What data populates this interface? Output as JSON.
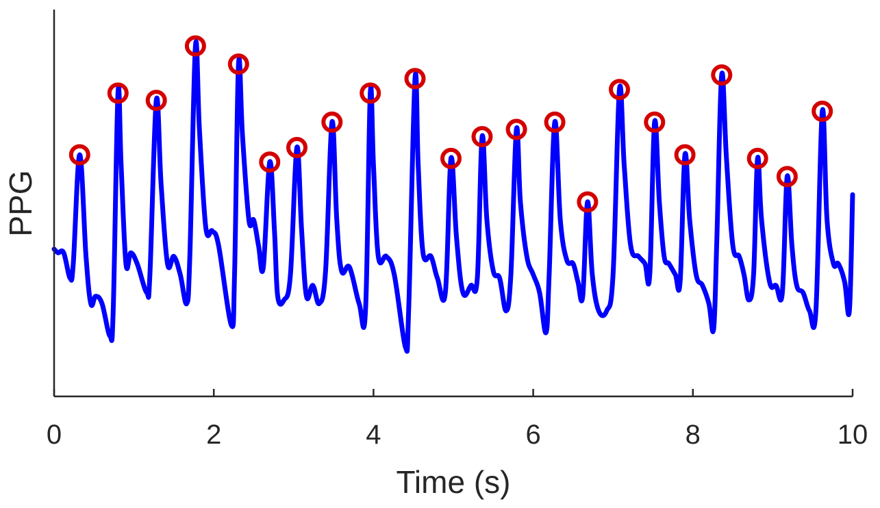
{
  "chart_data": {
    "type": "line",
    "title": "",
    "xlabel": "Time (s)",
    "ylabel": "PPG",
    "xlim": [
      0,
      10
    ],
    "ylim": [
      0,
      1
    ],
    "xticks": [
      "0",
      "2",
      "4",
      "6",
      "8",
      "10"
    ],
    "xtick_values": [
      0,
      2,
      4,
      6,
      8,
      10
    ],
    "yticks_shown": false,
    "grid": false,
    "legend": "none",
    "colors": {
      "signal": "#0000ff",
      "peak_marker": "#d40000",
      "axis": "#262626"
    },
    "series": [
      {
        "name": "",
        "kind": "line",
        "points": [
          [
            0.0,
            0.37
          ],
          [
            0.05,
            0.36
          ],
          [
            0.12,
            0.36
          ],
          [
            0.2,
            0.29
          ],
          [
            0.24,
            0.33
          ],
          [
            0.32,
            0.63
          ],
          [
            0.4,
            0.35
          ],
          [
            0.46,
            0.22
          ],
          [
            0.52,
            0.24
          ],
          [
            0.6,
            0.22
          ],
          [
            0.7,
            0.13
          ],
          [
            0.74,
            0.2
          ],
          [
            0.8,
            0.8
          ],
          [
            0.84,
            0.6
          ],
          [
            0.9,
            0.33
          ],
          [
            0.96,
            0.36
          ],
          [
            1.04,
            0.33
          ],
          [
            1.16,
            0.25
          ],
          [
            1.2,
            0.3
          ],
          [
            1.28,
            0.78
          ],
          [
            1.34,
            0.55
          ],
          [
            1.42,
            0.33
          ],
          [
            1.5,
            0.35
          ],
          [
            1.58,
            0.3
          ],
          [
            1.66,
            0.22
          ],
          [
            1.7,
            0.35
          ],
          [
            1.77,
            0.93
          ],
          [
            1.82,
            0.7
          ],
          [
            1.9,
            0.43
          ],
          [
            1.98,
            0.42
          ],
          [
            2.06,
            0.38
          ],
          [
            2.22,
            0.16
          ],
          [
            2.26,
            0.3
          ],
          [
            2.31,
            0.88
          ],
          [
            2.36,
            0.68
          ],
          [
            2.44,
            0.45
          ],
          [
            2.5,
            0.45
          ],
          [
            2.56,
            0.38
          ],
          [
            2.62,
            0.32
          ],
          [
            2.7,
            0.61
          ],
          [
            2.76,
            0.42
          ],
          [
            2.8,
            0.24
          ],
          [
            2.88,
            0.23
          ],
          [
            2.96,
            0.3
          ],
          [
            3.04,
            0.65
          ],
          [
            3.1,
            0.42
          ],
          [
            3.16,
            0.24
          ],
          [
            3.24,
            0.27
          ],
          [
            3.32,
            0.22
          ],
          [
            3.4,
            0.31
          ],
          [
            3.48,
            0.72
          ],
          [
            3.54,
            0.45
          ],
          [
            3.6,
            0.31
          ],
          [
            3.7,
            0.32
          ],
          [
            3.82,
            0.22
          ],
          [
            3.9,
            0.2
          ],
          [
            3.96,
            0.8
          ],
          [
            4.0,
            0.6
          ],
          [
            4.06,
            0.35
          ],
          [
            4.16,
            0.35
          ],
          [
            4.26,
            0.3
          ],
          [
            4.4,
            0.1
          ],
          [
            4.44,
            0.2
          ],
          [
            4.52,
            0.84
          ],
          [
            4.56,
            0.6
          ],
          [
            4.62,
            0.36
          ],
          [
            4.72,
            0.35
          ],
          [
            4.8,
            0.29
          ],
          [
            4.9,
            0.25
          ],
          [
            4.97,
            0.62
          ],
          [
            5.04,
            0.4
          ],
          [
            5.12,
            0.25
          ],
          [
            5.22,
            0.27
          ],
          [
            5.3,
            0.29
          ],
          [
            5.36,
            0.68
          ],
          [
            5.42,
            0.45
          ],
          [
            5.5,
            0.31
          ],
          [
            5.58,
            0.29
          ],
          [
            5.66,
            0.2
          ],
          [
            5.72,
            0.3
          ],
          [
            5.79,
            0.7
          ],
          [
            5.84,
            0.5
          ],
          [
            5.92,
            0.35
          ],
          [
            6.0,
            0.3
          ],
          [
            6.08,
            0.25
          ],
          [
            6.16,
            0.14
          ],
          [
            6.2,
            0.3
          ],
          [
            6.27,
            0.72
          ],
          [
            6.34,
            0.45
          ],
          [
            6.42,
            0.34
          ],
          [
            6.5,
            0.33
          ],
          [
            6.56,
            0.28
          ],
          [
            6.62,
            0.24
          ],
          [
            6.68,
            0.5
          ],
          [
            6.74,
            0.3
          ],
          [
            6.82,
            0.2
          ],
          [
            6.92,
            0.2
          ],
          [
            7.0,
            0.3
          ],
          [
            7.08,
            0.81
          ],
          [
            7.14,
            0.6
          ],
          [
            7.22,
            0.38
          ],
          [
            7.32,
            0.35
          ],
          [
            7.4,
            0.33
          ],
          [
            7.46,
            0.3
          ],
          [
            7.52,
            0.72
          ],
          [
            7.58,
            0.5
          ],
          [
            7.64,
            0.35
          ],
          [
            7.7,
            0.33
          ],
          [
            7.78,
            0.3
          ],
          [
            7.84,
            0.28
          ],
          [
            7.9,
            0.63
          ],
          [
            7.96,
            0.45
          ],
          [
            8.04,
            0.3
          ],
          [
            8.12,
            0.27
          ],
          [
            8.2,
            0.22
          ],
          [
            8.26,
            0.15
          ],
          [
            8.3,
            0.4
          ],
          [
            8.36,
            0.85
          ],
          [
            8.42,
            0.62
          ],
          [
            8.5,
            0.38
          ],
          [
            8.58,
            0.35
          ],
          [
            8.64,
            0.3
          ],
          [
            8.7,
            0.23
          ],
          [
            8.76,
            0.3
          ],
          [
            8.81,
            0.62
          ],
          [
            8.86,
            0.45
          ],
          [
            8.96,
            0.28
          ],
          [
            9.04,
            0.27
          ],
          [
            9.12,
            0.25
          ],
          [
            9.18,
            0.57
          ],
          [
            9.24,
            0.38
          ],
          [
            9.3,
            0.27
          ],
          [
            9.38,
            0.25
          ],
          [
            9.46,
            0.2
          ],
          [
            9.54,
            0.2
          ],
          [
            9.62,
            0.75
          ],
          [
            9.68,
            0.45
          ],
          [
            9.76,
            0.33
          ],
          [
            9.82,
            0.33
          ],
          [
            9.9,
            0.28
          ],
          [
            9.96,
            0.2
          ],
          [
            10.0,
            0.52
          ]
        ]
      },
      {
        "name": "",
        "kind": "peaks",
        "points": [
          [
            0.32,
            0.63
          ],
          [
            0.8,
            0.8
          ],
          [
            1.28,
            0.78
          ],
          [
            1.77,
            0.93
          ],
          [
            2.31,
            0.88
          ],
          [
            2.7,
            0.61
          ],
          [
            3.04,
            0.65
          ],
          [
            3.48,
            0.72
          ],
          [
            3.96,
            0.8
          ],
          [
            4.52,
            0.84
          ],
          [
            4.97,
            0.62
          ],
          [
            5.36,
            0.68
          ],
          [
            5.79,
            0.7
          ],
          [
            6.27,
            0.72
          ],
          [
            6.68,
            0.5
          ],
          [
            7.08,
            0.81
          ],
          [
            7.52,
            0.72
          ],
          [
            7.9,
            0.63
          ],
          [
            8.36,
            0.85
          ],
          [
            8.81,
            0.62
          ],
          [
            9.18,
            0.57
          ],
          [
            9.62,
            0.75
          ]
        ]
      }
    ]
  }
}
